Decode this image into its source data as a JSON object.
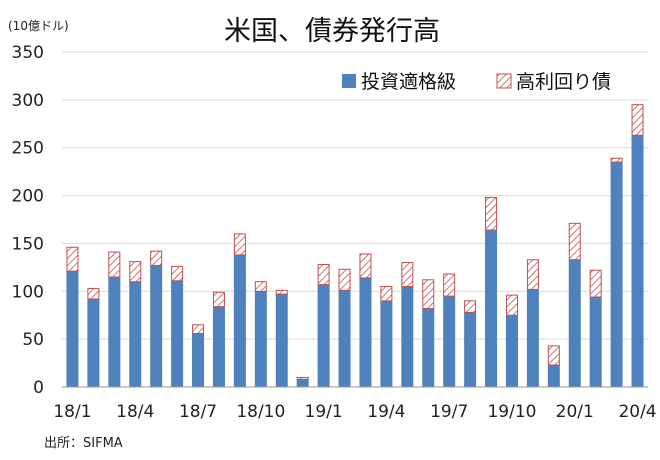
{
  "chart_data": {
    "type": "bar",
    "stacked": true,
    "title": "米国、債券発行高",
    "unit_label": "(10億ドル)",
    "source": "出所：SIFMA",
    "xlabel": "",
    "ylabel": "",
    "ylim": [
      0,
      350
    ],
    "yticks": [
      0,
      50,
      100,
      150,
      200,
      250,
      300,
      350
    ],
    "grid": true,
    "legend_position": "top-right",
    "colors": {
      "investment_grade": "#4F81BD",
      "high_yield_stroke": "#C0504D"
    },
    "categories": [
      "18/1",
      "18/2",
      "18/3",
      "18/4",
      "18/5",
      "18/6",
      "18/7",
      "18/8",
      "18/9",
      "18/10",
      "18/11",
      "18/12",
      "19/1",
      "19/2",
      "19/3",
      "19/4",
      "19/5",
      "19/6",
      "19/7",
      "19/8",
      "19/9",
      "19/10",
      "19/11",
      "19/12",
      "20/1",
      "20/2",
      "20/3",
      "20/4"
    ],
    "x_tick_labels": [
      "18/1",
      "18/4",
      "18/7",
      "18/10",
      "19/1",
      "19/4",
      "19/7",
      "19/10",
      "20/1",
      "20/4"
    ],
    "series": [
      {
        "name": "投資適格級",
        "values": [
          121,
          92,
          115,
          110,
          127,
          111,
          56,
          84,
          138,
          100,
          97,
          8,
          107,
          101,
          114,
          90,
          105,
          82,
          95,
          78,
          164,
          75,
          102,
          23,
          133,
          94,
          235,
          263
        ]
      },
      {
        "name": "高利回り債",
        "values": [
          25,
          11,
          26,
          21,
          15,
          15,
          9,
          15,
          22,
          10,
          4,
          2,
          21,
          22,
          25,
          15,
          25,
          30,
          23,
          12,
          34,
          21,
          31,
          20,
          38,
          28,
          4,
          32
        ]
      }
    ]
  }
}
